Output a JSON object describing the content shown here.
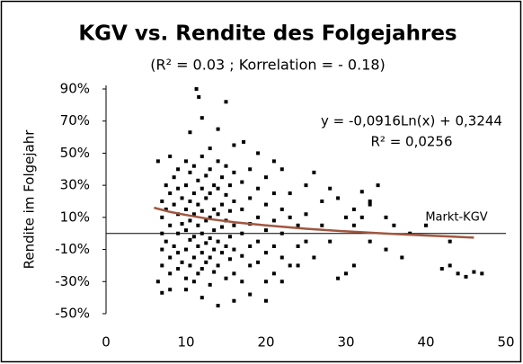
{
  "chart_data": {
    "type": "scatter",
    "title": "KGV vs. Rendite des Folgejahres",
    "subtitle": "(R² = 0.03 ; Korrelation = - 0.18)",
    "y_label": "Rendite im Folgejahr",
    "annotations": [
      "y = -0,0916Ln(x) + 0,3244",
      "R² = 0,0256",
      "Markt-KGV"
    ],
    "xlim": [
      0,
      50
    ],
    "xticks": [
      0,
      10,
      20,
      30,
      40,
      50
    ],
    "ylim": [
      -50,
      90
    ],
    "yticks": [
      {
        "value": 90,
        "label": "90%"
      },
      {
        "value": 70,
        "label": "70%"
      },
      {
        "value": 50,
        "label": "50%"
      },
      {
        "value": 30,
        "label": "30%"
      },
      {
        "value": 10,
        "label": "10%"
      },
      {
        "value": -10,
        "label": "-10%"
      },
      {
        "value": -30,
        "label": "-30%"
      },
      {
        "value": -50,
        "label": "-50%"
      }
    ],
    "series": [
      {
        "color": "#000000",
        "x": [
          11.3,
          11.6,
          15,
          12,
          10.5,
          14,
          17.2,
          16,
          13,
          6.5,
          8,
          19,
          21,
          22,
          25,
          26,
          28,
          29,
          31,
          33,
          35,
          30,
          29,
          31,
          35,
          37,
          42,
          44,
          45,
          46,
          47,
          43,
          38,
          36,
          33,
          32,
          34,
          27,
          26,
          24,
          28,
          31,
          32,
          30,
          27,
          33,
          40,
          43,
          14,
          12,
          16,
          20,
          7,
          8,
          6.5,
          10,
          18,
          22,
          23,
          21,
          7,
          7,
          7,
          7,
          7,
          7.5,
          7.5,
          7.5,
          8,
          8,
          8,
          8,
          8.5,
          8.5,
          8.5,
          9,
          9,
          9,
          9,
          9,
          9,
          9.5,
          9.5,
          9.5,
          10,
          10,
          10,
          10,
          10,
          10,
          10.5,
          10.5,
          10.5,
          10.5,
          10.5,
          11,
          11,
          11,
          11,
          11,
          11,
          11.5,
          11.5,
          11.5,
          11.5,
          11.5,
          12,
          12,
          12,
          12,
          12,
          12,
          12.5,
          12.5,
          12.5,
          12.5,
          12.5,
          13,
          13,
          13,
          13,
          13,
          13,
          13.5,
          13.5,
          13.5,
          13.5,
          13.5,
          14,
          14,
          14,
          14,
          14,
          14.5,
          14.5,
          14.5,
          14.5,
          15,
          15,
          15,
          15,
          15,
          15.5,
          15.5,
          15.5,
          15.5,
          16,
          16,
          16,
          16,
          16,
          17,
          17,
          17,
          17,
          17,
          18,
          18,
          18,
          18,
          18,
          19,
          19,
          19,
          19,
          20,
          20,
          20,
          20,
          20,
          21,
          21,
          21,
          22,
          22,
          22,
          23,
          23,
          24,
          24,
          25,
          25
        ],
        "values": [
          90,
          85,
          82,
          72,
          63,
          65,
          57,
          55,
          53,
          45,
          48,
          50,
          45,
          40,
          30,
          38,
          28,
          22,
          15,
          18,
          10,
          -25,
          -28,
          -20,
          -10,
          -15,
          -22,
          -25,
          -27,
          -24,
          -25,
          -20,
          0,
          5,
          20,
          26,
          30,
          20,
          -15,
          -20,
          -5,
          5,
          10,
          10,
          5,
          -5,
          5,
          -5,
          -45,
          -40,
          -42,
          -42,
          -37,
          -35,
          -30,
          -35,
          -38,
          -30,
          -20,
          -25,
          20,
          10,
          0,
          -10,
          -20,
          30,
          15,
          -5,
          25,
          5,
          -15,
          -25,
          35,
          18,
          -8,
          40,
          28,
          12,
          0,
          -12,
          -22,
          22,
          6,
          -18,
          45,
          30,
          15,
          2,
          -10,
          -28,
          38,
          20,
          8,
          -4,
          -20,
          42,
          25,
          12,
          -2,
          -15,
          -30,
          33,
          18,
          5,
          -8,
          -25,
          48,
          28,
          14,
          0,
          -12,
          -22,
          36,
          22,
          8,
          -6,
          -18,
          40,
          25,
          10,
          -3,
          -15,
          -32,
          30,
          15,
          2,
          -10,
          -24,
          45,
          28,
          12,
          -5,
          -20,
          35,
          18,
          4,
          -12,
          42,
          24,
          8,
          -8,
          -28,
          30,
          14,
          -2,
          -16,
          38,
          20,
          5,
          -10,
          -25,
          32,
          15,
          0,
          -14,
          -30,
          40,
          22,
          6,
          -8,
          -20,
          28,
          10,
          -5,
          -18,
          35,
          18,
          2,
          -12,
          -30,
          25,
          8,
          -8,
          15,
          0,
          -15,
          10,
          25,
          5,
          -8,
          12,
          -5
        ]
      },
      {
        "color": "#a0573f",
        "x": [
          6,
          8,
          10,
          13,
          16,
          20,
          25,
          30,
          35,
          40,
          46
        ],
        "values": [
          16.0,
          13.4,
          11.5,
          8.9,
          7.0,
          5.0,
          2.9,
          1.3,
          -0.1,
          -1.3,
          -2.6
        ]
      }
    ]
  }
}
